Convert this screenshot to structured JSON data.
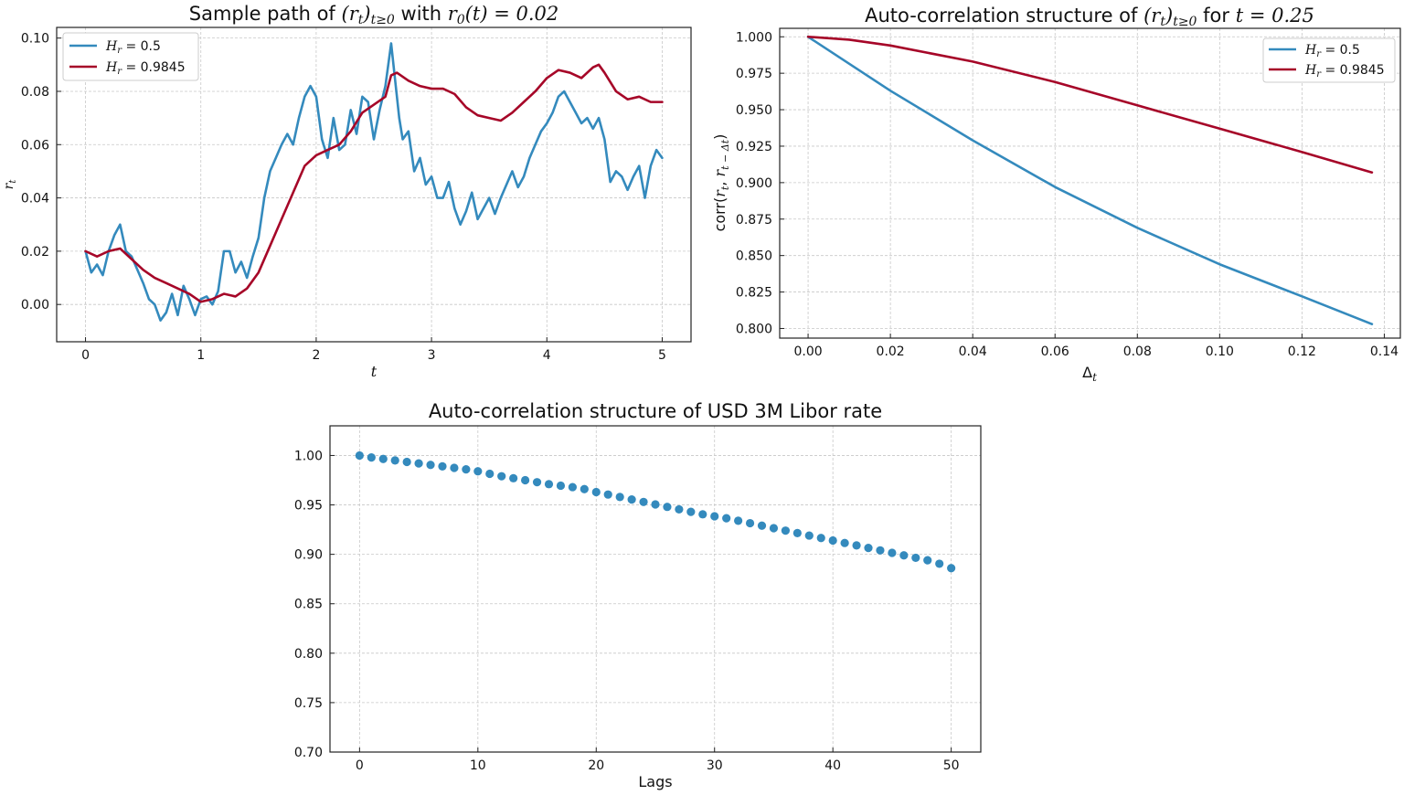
{
  "chart_data": [
    {
      "id": "sample-path",
      "type": "line",
      "title_prefix": "Sample path of ",
      "title_math1": "(r",
      "title_math1_sub": "t",
      "title_math1_tail": ")",
      "title_math1_sub2": "t≥0",
      "title_mid": " with ",
      "title_math2": "r",
      "title_math2_sub": "0",
      "title_math2_tail": "(t) = 0.02",
      "xlabel": "t",
      "ylabel": "r",
      "ylabel_sub": "t",
      "xlim": [
        -0.25,
        5.25
      ],
      "ylim": [
        -0.014,
        0.104
      ],
      "xticks": [
        0,
        1,
        2,
        3,
        4,
        5
      ],
      "xtick_labels": [
        "0",
        "1",
        "2",
        "3",
        "4",
        "5"
      ],
      "yticks": [
        0.0,
        0.02,
        0.04,
        0.06,
        0.08,
        0.1
      ],
      "ytick_labels": [
        "0.00",
        "0.02",
        "0.04",
        "0.06",
        "0.08",
        "0.10"
      ],
      "grid": true,
      "legend_position": "top-left",
      "series": [
        {
          "legend_math": "H",
          "legend_sub": "r",
          "legend_value": " = 0.5",
          "color": "#348abd",
          "x": [
            0,
            0.05,
            0.1,
            0.15,
            0.2,
            0.25,
            0.3,
            0.35,
            0.4,
            0.45,
            0.5,
            0.55,
            0.6,
            0.65,
            0.7,
            0.75,
            0.8,
            0.85,
            0.9,
            0.95,
            1.0,
            1.05,
            1.1,
            1.15,
            1.2,
            1.25,
            1.3,
            1.35,
            1.4,
            1.45,
            1.5,
            1.55,
            1.6,
            1.65,
            1.7,
            1.75,
            1.8,
            1.85,
            1.9,
            1.95,
            2.0,
            2.05,
            2.1,
            2.15,
            2.2,
            2.25,
            2.3,
            2.35,
            2.4,
            2.45,
            2.5,
            2.55,
            2.6,
            2.65,
            2.68,
            2.72,
            2.75,
            2.8,
            2.85,
            2.9,
            2.95,
            3.0,
            3.05,
            3.1,
            3.15,
            3.2,
            3.25,
            3.3,
            3.35,
            3.4,
            3.45,
            3.5,
            3.55,
            3.6,
            3.65,
            3.7,
            3.75,
            3.8,
            3.85,
            3.9,
            3.95,
            4.0,
            4.05,
            4.1,
            4.15,
            4.2,
            4.25,
            4.3,
            4.35,
            4.4,
            4.45,
            4.5,
            4.55,
            4.6,
            4.65,
            4.7,
            4.75,
            4.8,
            4.85,
            4.9,
            4.95,
            5.0
          ],
          "y": [
            0.02,
            0.012,
            0.015,
            0.011,
            0.02,
            0.026,
            0.03,
            0.02,
            0.018,
            0.013,
            0.008,
            0.002,
            0.0,
            -0.006,
            -0.003,
            0.004,
            -0.004,
            0.007,
            0.002,
            -0.004,
            0.002,
            0.003,
            0.0,
            0.005,
            0.02,
            0.02,
            0.012,
            0.016,
            0.01,
            0.018,
            0.025,
            0.04,
            0.05,
            0.055,
            0.06,
            0.064,
            0.06,
            0.07,
            0.078,
            0.082,
            0.078,
            0.062,
            0.055,
            0.07,
            0.058,
            0.06,
            0.073,
            0.064,
            0.078,
            0.076,
            0.062,
            0.073,
            0.082,
            0.098,
            0.086,
            0.07,
            0.062,
            0.065,
            0.05,
            0.055,
            0.045,
            0.048,
            0.04,
            0.04,
            0.046,
            0.036,
            0.03,
            0.035,
            0.042,
            0.032,
            0.036,
            0.04,
            0.034,
            0.04,
            0.045,
            0.05,
            0.044,
            0.048,
            0.055,
            0.06,
            0.065,
            0.068,
            0.072,
            0.078,
            0.08,
            0.076,
            0.072,
            0.068,
            0.07,
            0.066,
            0.07,
            0.062,
            0.046,
            0.05,
            0.048,
            0.043,
            0.048,
            0.052,
            0.04,
            0.052,
            0.058,
            0.055
          ]
        },
        {
          "legend_math": "H",
          "legend_sub": "r",
          "legend_value": " = 0.9845",
          "color": "#a60628",
          "x": [
            0,
            0.1,
            0.2,
            0.3,
            0.4,
            0.5,
            0.6,
            0.7,
            0.8,
            0.9,
            1.0,
            1.1,
            1.2,
            1.3,
            1.4,
            1.5,
            1.6,
            1.7,
            1.8,
            1.9,
            2.0,
            2.1,
            2.2,
            2.3,
            2.4,
            2.5,
            2.6,
            2.65,
            2.7,
            2.8,
            2.9,
            3.0,
            3.1,
            3.2,
            3.3,
            3.4,
            3.5,
            3.6,
            3.7,
            3.8,
            3.9,
            4.0,
            4.1,
            4.2,
            4.3,
            4.4,
            4.45,
            4.5,
            4.6,
            4.7,
            4.8,
            4.9,
            5.0
          ],
          "y": [
            0.02,
            0.018,
            0.02,
            0.021,
            0.017,
            0.013,
            0.01,
            0.008,
            0.006,
            0.004,
            0.001,
            0.002,
            0.004,
            0.003,
            0.006,
            0.012,
            0.022,
            0.032,
            0.042,
            0.052,
            0.056,
            0.058,
            0.06,
            0.065,
            0.072,
            0.075,
            0.078,
            0.086,
            0.087,
            0.084,
            0.082,
            0.081,
            0.081,
            0.079,
            0.074,
            0.071,
            0.07,
            0.069,
            0.072,
            0.076,
            0.08,
            0.085,
            0.088,
            0.087,
            0.085,
            0.089,
            0.09,
            0.087,
            0.08,
            0.077,
            0.078,
            0.076,
            0.076
          ]
        }
      ]
    },
    {
      "id": "autocorr-model",
      "type": "line",
      "title_prefix": "Auto-correlation structure of ",
      "title_math1": "(r",
      "title_math1_sub": "t",
      "title_math1_tail": ")",
      "title_math1_sub2": "t≥0",
      "title_mid": " for ",
      "title_math2": "t",
      "title_math2_sub": "",
      "title_math2_tail": " = 0.25",
      "xlabel": "Δ",
      "xlabel_sub": "t",
      "ylabel_prefix": "corr(",
      "ylabel_math": "r",
      "ylabel_sub1": "t",
      "ylabel_comma": ", ",
      "ylabel_math2": "r",
      "ylabel_sub2": "t − Δt",
      "ylabel_tail": ")",
      "xlim": [
        -0.0069,
        0.1439
      ],
      "ylim": [
        0.7934,
        1.0058
      ],
      "xticks": [
        0.0,
        0.02,
        0.04,
        0.06,
        0.08,
        0.1,
        0.12,
        0.14
      ],
      "xtick_labels": [
        "0.00",
        "0.02",
        "0.04",
        "0.06",
        "0.08",
        "0.10",
        "0.12",
        "0.14"
      ],
      "yticks": [
        0.8,
        0.825,
        0.85,
        0.875,
        0.9,
        0.925,
        0.95,
        0.975,
        1.0
      ],
      "ytick_labels": [
        "0.800",
        "0.825",
        "0.850",
        "0.875",
        "0.900",
        "0.925",
        "0.950",
        "0.975",
        "1.000"
      ],
      "grid": true,
      "legend_position": "top-right",
      "series": [
        {
          "legend_math": "H",
          "legend_sub": "r",
          "legend_value": " = 0.5",
          "color": "#348abd",
          "x": [
            0,
            0.02,
            0.04,
            0.06,
            0.08,
            0.1,
            0.12,
            0.137
          ],
          "y": [
            1.0,
            0.963,
            0.929,
            0.897,
            0.869,
            0.844,
            0.822,
            0.803
          ]
        },
        {
          "legend_math": "H",
          "legend_sub": "r",
          "legend_value": " = 0.9845",
          "color": "#a60628",
          "x": [
            0,
            0.01,
            0.02,
            0.04,
            0.06,
            0.08,
            0.1,
            0.12,
            0.137
          ],
          "y": [
            1.0,
            0.998,
            0.994,
            0.983,
            0.969,
            0.953,
            0.937,
            0.921,
            0.907
          ]
        }
      ]
    },
    {
      "id": "libor-autocorr",
      "type": "scatter",
      "title": "Auto-correlation structure of USD 3M Libor rate",
      "xlabel": "Lags",
      "xlim": [
        -2.5,
        52.5
      ],
      "ylim": [
        0.7,
        1.03
      ],
      "xticks": [
        0,
        10,
        20,
        30,
        40,
        50
      ],
      "xtick_labels": [
        "0",
        "10",
        "20",
        "30",
        "40",
        "50"
      ],
      "yticks": [
        0.7,
        0.75,
        0.8,
        0.85,
        0.9,
        0.95,
        1.0
      ],
      "ytick_labels": [
        "0.70",
        "0.75",
        "0.80",
        "0.85",
        "0.90",
        "0.95",
        "1.00"
      ],
      "grid": true,
      "color": "#348abd",
      "x": [
        0,
        1,
        2,
        3,
        4,
        5,
        6,
        7,
        8,
        9,
        10,
        11,
        12,
        13,
        14,
        15,
        16,
        17,
        18,
        19,
        20,
        21,
        22,
        23,
        24,
        25,
        26,
        27,
        28,
        29,
        30,
        31,
        32,
        33,
        34,
        35,
        36,
        37,
        38,
        39,
        40,
        41,
        42,
        43,
        44,
        45,
        46,
        47,
        48,
        49,
        50
      ],
      "y": [
        1.0,
        0.998,
        0.9965,
        0.995,
        0.9935,
        0.992,
        0.9905,
        0.989,
        0.9875,
        0.986,
        0.984,
        0.9815,
        0.979,
        0.977,
        0.975,
        0.973,
        0.971,
        0.9695,
        0.968,
        0.966,
        0.963,
        0.9605,
        0.958,
        0.9555,
        0.953,
        0.9505,
        0.948,
        0.9455,
        0.943,
        0.9405,
        0.9385,
        0.9365,
        0.934,
        0.9315,
        0.929,
        0.9265,
        0.924,
        0.9215,
        0.919,
        0.9165,
        0.914,
        0.9115,
        0.909,
        0.9065,
        0.904,
        0.9015,
        0.899,
        0.8965,
        0.894,
        0.8905,
        0.886
      ]
    }
  ]
}
